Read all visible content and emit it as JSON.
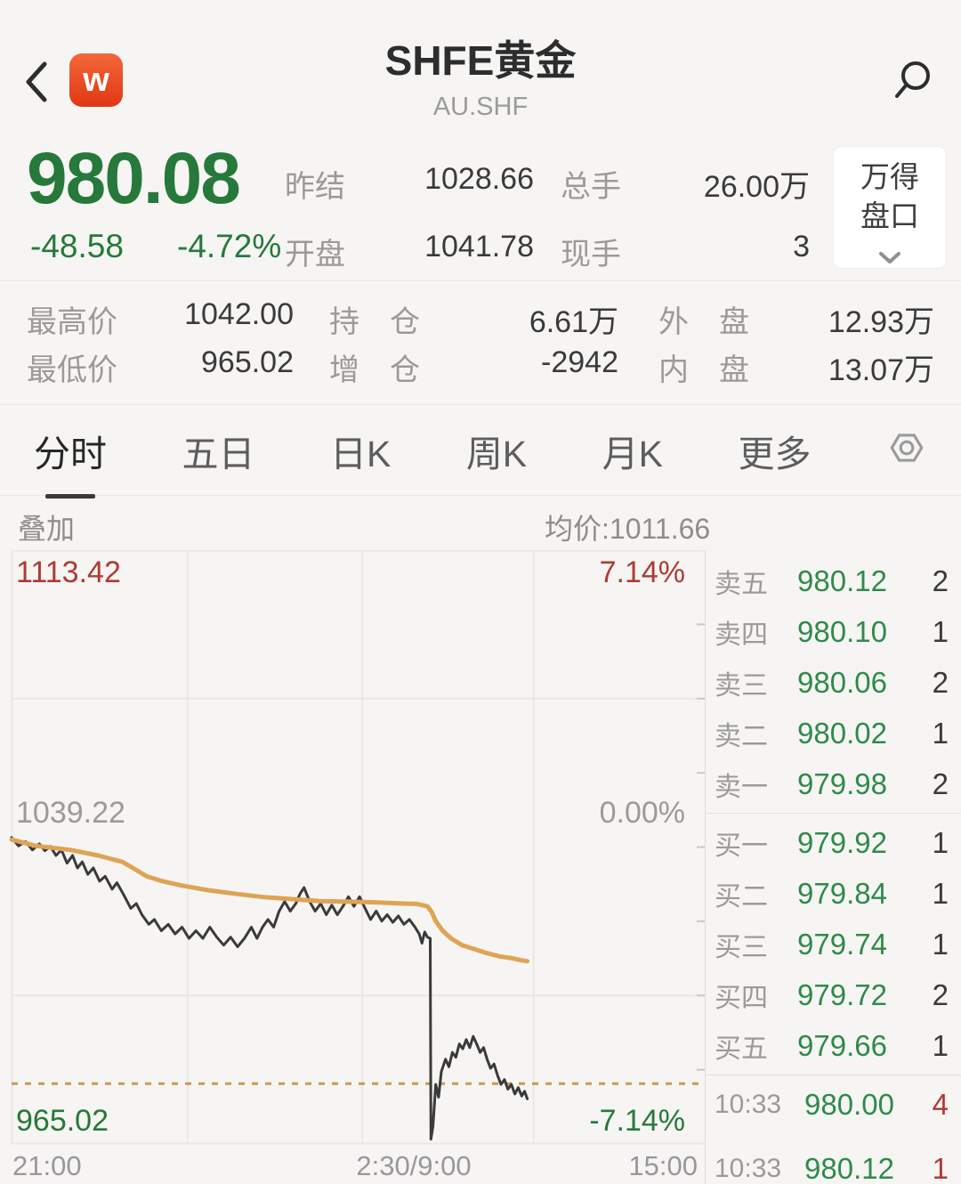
{
  "header": {
    "title": "SHFE黄金",
    "subtitle": "AU.SHF",
    "logo_letter": "w"
  },
  "quote": {
    "last": "980.08",
    "change": "-48.58",
    "change_pct": "-4.72%",
    "fields": [
      {
        "label": "昨结",
        "value": "1028.66"
      },
      {
        "label": "开盘",
        "value": "1041.78"
      },
      {
        "label": "总手",
        "value": "26.00万"
      },
      {
        "label": "现手",
        "value": "3"
      }
    ],
    "panel_button": {
      "line1": "万得",
      "line2": "盘口"
    }
  },
  "stats": {
    "rows": [
      [
        {
          "label": "最高价",
          "value": "1042.00"
        },
        {
          "label": "持　仓",
          "value": "6.61万"
        },
        {
          "label": "外　盘",
          "value": "12.93万"
        }
      ],
      [
        {
          "label": "最低价",
          "value": "965.02"
        },
        {
          "label": "增　仓",
          "value": "-2942"
        },
        {
          "label": "内　盘",
          "value": "13.07万"
        }
      ]
    ]
  },
  "tabs": {
    "items": [
      "分时",
      "五日",
      "日K",
      "周K",
      "月K",
      "更多"
    ],
    "active": "分时"
  },
  "overlay_bar": {
    "left": "叠加",
    "avg_label": "均价:1011.66"
  },
  "chart_data": {
    "type": "line",
    "title": "SHFE黄金 分时图",
    "ylim": [
      965.02,
      1113.42
    ],
    "labels": {
      "top_left": "1113.42",
      "top_right": "7.14%",
      "mid_left": "1039.22",
      "mid_right": "0.00%",
      "bottom_left": "965.02",
      "bottom_right": "-7.14%"
    },
    "x_ticks": [
      "21:00",
      "2:30/9:00",
      "15:00"
    ],
    "grid": {
      "v_fracs": [
        0.254,
        0.506,
        0.753
      ],
      "h_prices": [
        1076.32,
        1002.12
      ]
    },
    "last_price_line": 980.08,
    "colors": {
      "price": "#3a3a3a",
      "avg": "#dfa355",
      "dashed": "#cc9a4c",
      "grid": "#e9e8e5"
    },
    "series": [
      {
        "name": "price",
        "color": "#3a3a3a",
        "width": 3,
        "points": [
          [
            0.0,
            1041.6
          ],
          [
            0.01,
            1039.5
          ],
          [
            0.02,
            1040.6
          ],
          [
            0.03,
            1038.5
          ],
          [
            0.04,
            1040.0
          ],
          [
            0.048,
            1038.3
          ],
          [
            0.056,
            1039.4
          ],
          [
            0.064,
            1037.1
          ],
          [
            0.072,
            1038.5
          ],
          [
            0.08,
            1035.2
          ],
          [
            0.088,
            1037.1
          ],
          [
            0.095,
            1034.0
          ],
          [
            0.102,
            1035.5
          ],
          [
            0.11,
            1032.4
          ],
          [
            0.118,
            1034.0
          ],
          [
            0.127,
            1030.7
          ],
          [
            0.135,
            1031.9
          ],
          [
            0.145,
            1028.7
          ],
          [
            0.152,
            1030.3
          ],
          [
            0.162,
            1027.2
          ],
          [
            0.172,
            1023.9
          ],
          [
            0.18,
            1025.1
          ],
          [
            0.188,
            1022.3
          ],
          [
            0.198,
            1019.9
          ],
          [
            0.206,
            1021.1
          ],
          [
            0.216,
            1018.3
          ],
          [
            0.226,
            1019.9
          ],
          [
            0.236,
            1017.5
          ],
          [
            0.246,
            1019.2
          ],
          [
            0.256,
            1016.4
          ],
          [
            0.266,
            1018.3
          ],
          [
            0.276,
            1016.4
          ],
          [
            0.286,
            1019.2
          ],
          [
            0.296,
            1016.7
          ],
          [
            0.306,
            1014.7
          ],
          [
            0.316,
            1016.7
          ],
          [
            0.326,
            1014.3
          ],
          [
            0.336,
            1016.4
          ],
          [
            0.346,
            1019.2
          ],
          [
            0.354,
            1016.4
          ],
          [
            0.362,
            1019.2
          ],
          [
            0.37,
            1021.1
          ],
          [
            0.378,
            1019.2
          ],
          [
            0.386,
            1023.2
          ],
          [
            0.394,
            1025.6
          ],
          [
            0.402,
            1023.2
          ],
          [
            0.41,
            1025.1
          ],
          [
            0.416,
            1027.5
          ],
          [
            0.422,
            1029.1
          ],
          [
            0.43,
            1025.6
          ],
          [
            0.438,
            1023.2
          ],
          [
            0.446,
            1025.1
          ],
          [
            0.454,
            1022.3
          ],
          [
            0.462,
            1024.7
          ],
          [
            0.47,
            1022.3
          ],
          [
            0.478,
            1024.4
          ],
          [
            0.486,
            1026.8
          ],
          [
            0.494,
            1024.4
          ],
          [
            0.502,
            1026.8
          ],
          [
            0.51,
            1023.9
          ],
          [
            0.518,
            1021.1
          ],
          [
            0.526,
            1023.2
          ],
          [
            0.534,
            1020.7
          ],
          [
            0.542,
            1022.3
          ],
          [
            0.55,
            1020.4
          ],
          [
            0.558,
            1022.0
          ],
          [
            0.566,
            1019.9
          ],
          [
            0.574,
            1021.1
          ],
          [
            0.582,
            1019.2
          ],
          [
            0.588,
            1017.5
          ],
          [
            0.592,
            1015.2
          ],
          [
            0.596,
            1018.0
          ],
          [
            0.6,
            1016.7
          ],
          [
            0.604,
            1016.4
          ],
          [
            0.605,
            966.2
          ],
          [
            0.608,
            969.5
          ],
          [
            0.612,
            979.9
          ],
          [
            0.616,
            976.7
          ],
          [
            0.62,
            983.1
          ],
          [
            0.626,
            986.2
          ],
          [
            0.631,
            984.3
          ],
          [
            0.636,
            987.9
          ],
          [
            0.641,
            986.7
          ],
          [
            0.646,
            990.0
          ],
          [
            0.651,
            988.8
          ],
          [
            0.656,
            991.1
          ],
          [
            0.661,
            989.1
          ],
          [
            0.666,
            991.9
          ],
          [
            0.671,
            990.0
          ],
          [
            0.676,
            987.9
          ],
          [
            0.681,
            989.1
          ],
          [
            0.686,
            986.2
          ],
          [
            0.691,
            983.9
          ],
          [
            0.696,
            985.0
          ],
          [
            0.701,
            982.2
          ],
          [
            0.706,
            979.9
          ],
          [
            0.711,
            981.1
          ],
          [
            0.716,
            978.7
          ],
          [
            0.721,
            979.9
          ],
          [
            0.726,
            977.5
          ],
          [
            0.731,
            979.1
          ],
          [
            0.736,
            977.0
          ],
          [
            0.74,
            978.2
          ],
          [
            0.744,
            976.3
          ]
        ]
      },
      {
        "name": "avg",
        "color": "#dfa355",
        "width": 5,
        "points": [
          [
            0.0,
            1041.1
          ],
          [
            0.035,
            1039.5
          ],
          [
            0.085,
            1038.5
          ],
          [
            0.125,
            1037.1
          ],
          [
            0.16,
            1035.5
          ],
          [
            0.175,
            1034.0
          ],
          [
            0.195,
            1031.9
          ],
          [
            0.215,
            1030.8
          ],
          [
            0.245,
            1029.6
          ],
          [
            0.285,
            1028.4
          ],
          [
            0.325,
            1027.5
          ],
          [
            0.365,
            1026.7
          ],
          [
            0.405,
            1026.2
          ],
          [
            0.445,
            1025.7
          ],
          [
            0.485,
            1025.6
          ],
          [
            0.525,
            1025.4
          ],
          [
            0.565,
            1025.1
          ],
          [
            0.585,
            1025.0
          ],
          [
            0.6,
            1024.4
          ],
          [
            0.606,
            1023.0
          ],
          [
            0.612,
            1020.7
          ],
          [
            0.622,
            1018.3
          ],
          [
            0.634,
            1016.4
          ],
          [
            0.65,
            1014.7
          ],
          [
            0.668,
            1013.7
          ],
          [
            0.686,
            1012.7
          ],
          [
            0.704,
            1011.9
          ],
          [
            0.72,
            1011.5
          ],
          [
            0.736,
            1010.9
          ],
          [
            0.744,
            1010.7
          ]
        ]
      }
    ]
  },
  "order_book": {
    "asks": [
      {
        "label": "卖五",
        "price": "980.12",
        "vol": "2"
      },
      {
        "label": "卖四",
        "price": "980.10",
        "vol": "1"
      },
      {
        "label": "卖三",
        "price": "980.06",
        "vol": "2"
      },
      {
        "label": "卖二",
        "price": "980.02",
        "vol": "1"
      },
      {
        "label": "卖一",
        "price": "979.98",
        "vol": "2"
      }
    ],
    "bids": [
      {
        "label": "买一",
        "price": "979.92",
        "vol": "1"
      },
      {
        "label": "买二",
        "price": "979.84",
        "vol": "1"
      },
      {
        "label": "买三",
        "price": "979.74",
        "vol": "1"
      },
      {
        "label": "买四",
        "price": "979.72",
        "vol": "2"
      },
      {
        "label": "买五",
        "price": "979.66",
        "vol": "1"
      }
    ],
    "trades": [
      {
        "time": "10:33",
        "price": "980.00",
        "vol": "4"
      },
      {
        "time": "10:33",
        "price": "980.12",
        "vol": "1"
      }
    ]
  }
}
